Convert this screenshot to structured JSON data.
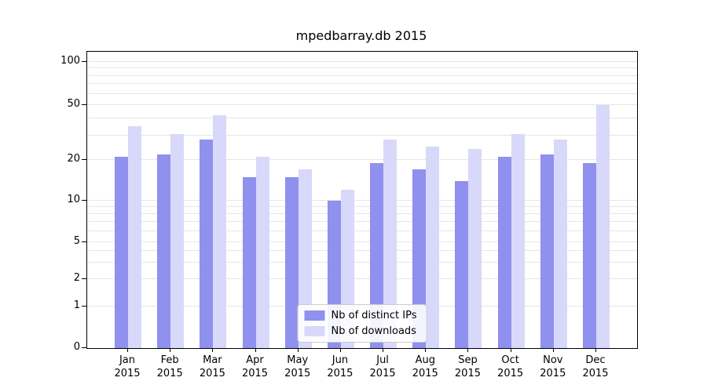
{
  "chart_data": {
    "type": "bar",
    "title": "mpedbarray.db 2015",
    "categories": [
      "Jan",
      "Feb",
      "Mar",
      "Apr",
      "May",
      "Jun",
      "Jul",
      "Aug",
      "Sep",
      "Oct",
      "Nov",
      "Dec"
    ],
    "year_label": "2015",
    "series": [
      {
        "name": "Nb of distinct IPs",
        "color": "#9090ee",
        "values": [
          21,
          22,
          28,
          15,
          15,
          10,
          19,
          17,
          14,
          21,
          22,
          19
        ]
      },
      {
        "name": "Nb of downloads",
        "color": "#d8d8fa",
        "values": [
          35,
          31,
          42,
          21,
          17,
          12,
          28,
          25,
          24,
          31,
          28,
          50
        ]
      }
    ],
    "yscale": "symlog",
    "yticks": [
      0,
      1,
      2,
      5,
      10,
      20,
      50,
      100
    ],
    "minor_gridlines": [
      1,
      2,
      3,
      4,
      5,
      6,
      7,
      8,
      9,
      10,
      20,
      30,
      40,
      50,
      60,
      70,
      80,
      90,
      100
    ],
    "grid": true,
    "legend_position": "lower center"
  }
}
